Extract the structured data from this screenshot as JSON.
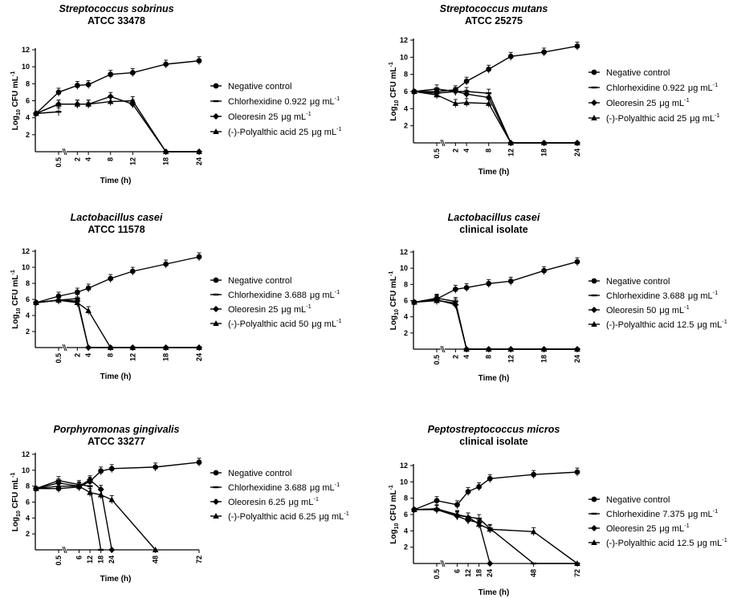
{
  "chart_data": [
    {
      "type": "line",
      "title": "Streptococcus sobrinus",
      "subtitle": "ATCC 33478",
      "xlabel": "Time (h)",
      "ylabel": "Log10 CFU mL-1",
      "ylabel_parts": [
        "Log",
        "10",
        " CFU mL",
        "-1"
      ],
      "xticks": [
        "0.5",
        "2",
        "4",
        "8",
        "12",
        "18",
        "24"
      ],
      "xtick_values": [
        0.5,
        2,
        4,
        8,
        12,
        18,
        24
      ],
      "xmax": 24,
      "yticks": [
        "2",
        "4",
        "6",
        "8",
        "10",
        "12"
      ],
      "ylim": [
        0,
        12
      ],
      "series": [
        {
          "name": "Negative control",
          "marker": "circle",
          "x": [
            0,
            0.5,
            2,
            4,
            8,
            12,
            18,
            24
          ],
          "values": [
            4.5,
            7.0,
            7.8,
            7.9,
            9.1,
            9.3,
            10.3,
            10.7
          ]
        },
        {
          "name": "Chlorhexidine 0.922",
          "unit": "μg mL",
          "sup": "-1",
          "marker": "square",
          "x": [
            0,
            0.5
          ],
          "values": [
            4.5,
            4.7
          ]
        },
        {
          "name": "Oleoresin 25",
          "unit": "μg mL",
          "sup": "-1",
          "marker": "diamond",
          "x": [
            0,
            0.5,
            2,
            4,
            8,
            12,
            18,
            24
          ],
          "values": [
            4.5,
            5.6,
            5.6,
            5.6,
            6.5,
            5.6,
            0,
            0
          ]
        },
        {
          "name": "(-)-Polyalthic acid 25",
          "unit": "μg mL",
          "sup": "-1",
          "marker": "triangle",
          "x": [
            0,
            0.5,
            2,
            4,
            8,
            12,
            18,
            24
          ],
          "values": [
            4.5,
            5.6,
            5.6,
            5.6,
            5.9,
            6.0,
            0,
            0
          ]
        }
      ]
    },
    {
      "type": "line",
      "title": "Streptococcus mutans",
      "subtitle": "ATCC 25275",
      "xlabel": "Time (h)",
      "ylabel": "Log10 CFU mL-1",
      "ylabel_parts": [
        "Log",
        "10",
        " CFU mL",
        "-1"
      ],
      "xticks": [
        "0.5",
        "2",
        "4",
        "8",
        "12",
        "18",
        "24"
      ],
      "xtick_values": [
        0.5,
        2,
        4,
        8,
        12,
        18,
        24
      ],
      "xmax": 24,
      "yticks": [
        "2",
        "4",
        "6",
        "8",
        "10",
        "12"
      ],
      "ylim": [
        0,
        12
      ],
      "series": [
        {
          "name": "Negative control",
          "marker": "circle",
          "x": [
            0,
            0.5,
            2,
            4,
            8,
            12,
            18,
            24
          ],
          "values": [
            6.0,
            6.0,
            6.2,
            7.2,
            8.6,
            10.1,
            10.6,
            11.3
          ]
        },
        {
          "name": "Chlorhexidine 0.922",
          "unit": "μg mL",
          "sup": "-1",
          "marker": "square",
          "x": [
            0,
            0.5,
            2,
            4,
            8,
            12,
            18,
            24
          ],
          "values": [
            6.0,
            6.3,
            6.0,
            6.0,
            5.8,
            0,
            0,
            0
          ]
        },
        {
          "name": "Oleoresin 25",
          "unit": "μg mL",
          "sup": "-1",
          "marker": "diamond",
          "x": [
            0,
            0.5,
            2,
            4,
            8,
            12,
            18,
            24
          ],
          "values": [
            6.0,
            5.8,
            6.0,
            5.7,
            5.3,
            0,
            0,
            0
          ]
        },
        {
          "name": "(-)-Polyalthic acid 25",
          "unit": "μg mL",
          "sup": "-1",
          "marker": "triangle",
          "x": [
            0,
            0.5,
            2,
            4,
            8,
            12,
            18,
            24
          ],
          "values": [
            6.0,
            5.6,
            4.6,
            4.7,
            4.6,
            0,
            0,
            0
          ]
        }
      ]
    },
    {
      "type": "line",
      "title": "Lactobacillus casei",
      "subtitle": "ATCC 11578",
      "xlabel": "Time (h)",
      "ylabel": "Log10 CFU mL-1",
      "ylabel_parts": [
        "Log",
        "10",
        " CFU mL",
        "-1"
      ],
      "xticks": [
        "0.5",
        "2",
        "4",
        "8",
        "12",
        "18",
        "24"
      ],
      "xtick_values": [
        0.5,
        2,
        4,
        8,
        12,
        18,
        24
      ],
      "xmax": 24,
      "yticks": [
        "2",
        "4",
        "6",
        "8",
        "10",
        "12"
      ],
      "ylim": [
        0,
        12
      ],
      "series": [
        {
          "name": "Negative control",
          "marker": "circle",
          "x": [
            0,
            0.5,
            2,
            4,
            8,
            12,
            18,
            24
          ],
          "values": [
            5.6,
            6.4,
            6.9,
            7.4,
            8.6,
            9.5,
            10.4,
            11.3
          ]
        },
        {
          "name": "Chlorhexidine 3.688",
          "unit": "μg mL",
          "sup": "-1",
          "marker": "square",
          "x": [
            0,
            0.5,
            2,
            4,
            8,
            12,
            18,
            24
          ],
          "values": [
            5.6,
            5.9,
            6.1,
            0,
            0,
            0,
            0,
            0
          ]
        },
        {
          "name": "Oleoresin 25",
          "unit": "μg mL",
          "sup": "-1",
          "marker": "diamond",
          "x": [
            0,
            0.5,
            2,
            4,
            8,
            12,
            18,
            24
          ],
          "values": [
            5.6,
            5.9,
            5.8,
            0,
            0,
            0,
            0,
            0
          ]
        },
        {
          "name": "(-)-Polyalthic acid  50",
          "unit": "μg mL",
          "sup": "-1",
          "marker": "triangle",
          "x": [
            0,
            0.5,
            2,
            4,
            8,
            12,
            18,
            24
          ],
          "values": [
            5.6,
            5.9,
            5.6,
            4.6,
            0,
            0,
            0,
            0
          ]
        }
      ]
    },
    {
      "type": "line",
      "title": "Lactobacillus casei",
      "subtitle": "clinical isolate",
      "xlabel": "Time (h)",
      "ylabel": "Log10 CFU mL-1",
      "ylabel_parts": [
        "Log",
        "10",
        " CFU mL",
        "-1"
      ],
      "xticks": [
        "0.5",
        "2",
        "4",
        "8",
        "12",
        "18",
        "24"
      ],
      "xtick_values": [
        0.5,
        2,
        4,
        8,
        12,
        18,
        24
      ],
      "xmax": 24,
      "yticks": [
        "2",
        "4",
        "6",
        "8",
        "10",
        "12"
      ],
      "ylim": [
        0,
        12
      ],
      "series": [
        {
          "name": "Negative control",
          "marker": "circle",
          "x": [
            0,
            0.5,
            2,
            4,
            8,
            12,
            18,
            24
          ],
          "values": [
            5.8,
            6.2,
            7.4,
            7.6,
            8.1,
            8.4,
            9.7,
            10.8
          ]
        },
        {
          "name": "Chlorhexidine 3.688",
          "unit": "μg mL",
          "sup": "-1",
          "marker": "square",
          "x": [
            0,
            0.5,
            2,
            4,
            8,
            12,
            18,
            24
          ],
          "values": [
            5.8,
            6.3,
            5.9,
            0,
            0,
            0,
            0,
            0
          ]
        },
        {
          "name": "Oleoresin 50",
          "unit": "μg mL",
          "sup": "-1",
          "marker": "diamond",
          "x": [
            0,
            0.5,
            2,
            4,
            8,
            12,
            18,
            24
          ],
          "values": [
            5.8,
            6.1,
            5.5,
            0,
            0,
            0,
            0,
            0
          ]
        },
        {
          "name": "(-)-Polyalthic acid 12.5",
          "unit": "μg mL",
          "sup": "-1",
          "marker": "triangle",
          "x": [
            0,
            0.5,
            2,
            4,
            8,
            12,
            18,
            24
          ],
          "values": [
            5.8,
            6.0,
            5.7,
            0,
            0,
            0,
            0,
            0
          ]
        }
      ]
    },
    {
      "type": "line",
      "title": "Porphyromonas gingivalis",
      "subtitle": "ATCC 33277",
      "xlabel": "Time (h)",
      "ylabel": "Log10 CFU mL-1",
      "ylabel_parts": [
        "Log",
        "10",
        " CFU mL",
        "-1"
      ],
      "xticks": [
        "0.5",
        "6",
        "12",
        "18",
        "24",
        "48",
        "72"
      ],
      "xtick_values": [
        0.5,
        6,
        12,
        18,
        24,
        48,
        72
      ],
      "xmax": 72,
      "yticks": [
        "2",
        "4",
        "6",
        "8",
        "10",
        "12"
      ],
      "ylim": [
        0,
        12
      ],
      "series": [
        {
          "name": "Negative control",
          "marker": "circle",
          "x": [
            0,
            0.5,
            6,
            12,
            18,
            24,
            48,
            72
          ],
          "values": [
            7.7,
            7.7,
            7.9,
            8.6,
            9.9,
            10.2,
            10.4,
            11.0
          ]
        },
        {
          "name": "Chlorhexidine 3.688",
          "unit": "μg mL",
          "sup": "-1",
          "marker": "square",
          "x": [
            0,
            0.5,
            6,
            12,
            18
          ],
          "values": [
            7.7,
            8.7,
            8.2,
            8.0,
            0
          ]
        },
        {
          "name": "Oleoresin 6.25",
          "unit": "μg mL",
          "sup": "-1",
          "marker": "diamond",
          "x": [
            0,
            0.5,
            6,
            12,
            18,
            24
          ],
          "values": [
            7.7,
            8.4,
            8.0,
            8.8,
            7.6,
            0
          ]
        },
        {
          "name": "(-)-Polyalthic acid 6.25",
          "unit": "μg mL",
          "sup": "-1",
          "marker": "triangle",
          "x": [
            0,
            0.5,
            6,
            12,
            18,
            24,
            48
          ],
          "values": [
            7.7,
            8.0,
            8.0,
            7.2,
            6.9,
            6.3,
            0
          ]
        }
      ]
    },
    {
      "type": "line",
      "title": "Peptostreptococcus micros",
      "subtitle": "clinical isolate",
      "xlabel": "Time (h)",
      "ylabel": "Log10 CFU mL-1",
      "ylabel_parts": [
        "Log",
        "10",
        " CFU mL",
        "-1"
      ],
      "xticks": [
        "0.5",
        "6",
        "12",
        "18",
        "24",
        "48",
        "72"
      ],
      "xtick_values": [
        0.5,
        6,
        12,
        18,
        24,
        48,
        72
      ],
      "xmax": 72,
      "yticks": [
        "2",
        "4",
        "6",
        "8",
        "10",
        "12"
      ],
      "ylim": [
        0,
        12
      ],
      "series": [
        {
          "name": "Negative control",
          "marker": "circle",
          "x": [
            0,
            0.5,
            6,
            12,
            18,
            24,
            48,
            72
          ],
          "values": [
            6.6,
            7.7,
            7.2,
            8.8,
            9.4,
            10.4,
            10.9,
            11.2
          ]
        },
        {
          "name": "Chlorhexidine 7.375",
          "unit": "μg mL",
          "sup": "-1",
          "marker": "square",
          "x": [
            0,
            0.5,
            6,
            12,
            18,
            24,
            48,
            72
          ],
          "values": [
            6.6,
            6.7,
            5.9,
            5.7,
            5.5,
            4.3,
            0,
            0
          ]
        },
        {
          "name": "Oleoresin 25",
          "unit": "μg mL",
          "sup": "-1",
          "marker": "diamond",
          "x": [
            0,
            0.5,
            6,
            12,
            18,
            24
          ],
          "values": [
            6.6,
            6.6,
            5.8,
            5.3,
            5.0,
            0
          ]
        },
        {
          "name": "(-)-Polyalthic acid 12.5",
          "unit": "μg mL",
          "sup": "-1",
          "marker": "triangle",
          "x": [
            0,
            0.5,
            6,
            12,
            18,
            24,
            48,
            72
          ],
          "values": [
            6.6,
            6.7,
            6.0,
            5.7,
            4.8,
            4.2,
            3.9,
            0
          ]
        }
      ]
    }
  ]
}
